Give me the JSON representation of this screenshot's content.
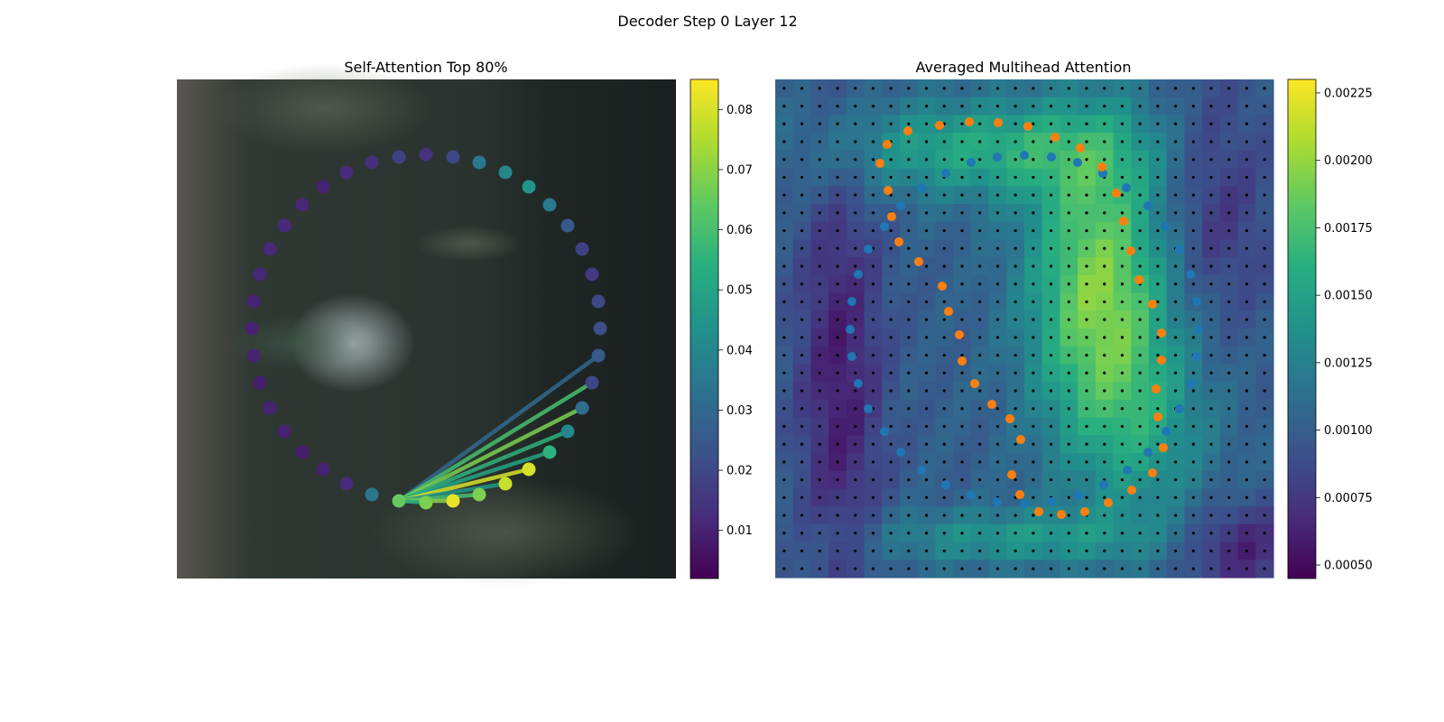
{
  "figure": {
    "suptitle": "Decoder Step 0 Layer 12"
  },
  "chart_data": [
    {
      "type": "scatter",
      "panel": "left",
      "title": "Self-Attention Top 80%",
      "colormap": "viridis",
      "colorbar": {
        "ticks": [
          "0.01",
          "0.02",
          "0.03",
          "0.04",
          "0.05",
          "0.06",
          "0.07",
          "0.08"
        ],
        "range": [
          0.002,
          0.085
        ]
      },
      "points": [
        {
          "x": 472,
          "y": 171,
          "v": 0.014
        },
        {
          "x": 502,
          "y": 174,
          "v": 0.02
        },
        {
          "x": 531,
          "y": 180,
          "v": 0.035
        },
        {
          "x": 560,
          "y": 191,
          "v": 0.04
        },
        {
          "x": 586,
          "y": 207,
          "v": 0.045
        },
        {
          "x": 609,
          "y": 227,
          "v": 0.035
        },
        {
          "x": 629,
          "y": 250,
          "v": 0.025
        },
        {
          "x": 645,
          "y": 276,
          "v": 0.018
        },
        {
          "x": 656,
          "y": 304,
          "v": 0.016
        },
        {
          "x": 663,
          "y": 334,
          "v": 0.02
        },
        {
          "x": 665,
          "y": 364,
          "v": 0.022
        },
        {
          "x": 663,
          "y": 394,
          "v": 0.025
        },
        {
          "x": 656,
          "y": 424,
          "v": 0.02
        },
        {
          "x": 645,
          "y": 452,
          "v": 0.032
        },
        {
          "x": 629,
          "y": 478,
          "v": 0.04
        },
        {
          "x": 609,
          "y": 501,
          "v": 0.055
        },
        {
          "x": 586,
          "y": 520,
          "v": 0.08
        },
        {
          "x": 560,
          "y": 536,
          "v": 0.078
        },
        {
          "x": 531,
          "y": 548,
          "v": 0.068
        },
        {
          "x": 502,
          "y": 555,
          "v": 0.082
        },
        {
          "x": 472,
          "y": 557,
          "v": 0.068
        },
        {
          "x": 442,
          "y": 555,
          "v": 0.065
        },
        {
          "x": 412,
          "y": 548,
          "v": 0.035
        },
        {
          "x": 384,
          "y": 536,
          "v": 0.012
        },
        {
          "x": 358,
          "y": 520,
          "v": 0.01
        },
        {
          "x": 335,
          "y": 501,
          "v": 0.009
        },
        {
          "x": 315,
          "y": 478,
          "v": 0.01
        },
        {
          "x": 299,
          "y": 452,
          "v": 0.01
        },
        {
          "x": 288,
          "y": 424,
          "v": 0.009
        },
        {
          "x": 281,
          "y": 394,
          "v": 0.01
        },
        {
          "x": 279,
          "y": 364,
          "v": 0.01
        },
        {
          "x": 281,
          "y": 334,
          "v": 0.01
        },
        {
          "x": 288,
          "y": 304,
          "v": 0.011
        },
        {
          "x": 299,
          "y": 276,
          "v": 0.012
        },
        {
          "x": 315,
          "y": 250,
          "v": 0.012
        },
        {
          "x": 335,
          "y": 227,
          "v": 0.011
        },
        {
          "x": 358,
          "y": 207,
          "v": 0.01
        },
        {
          "x": 384,
          "y": 191,
          "v": 0.012
        },
        {
          "x": 412,
          "y": 180,
          "v": 0.013
        },
        {
          "x": 442,
          "y": 174,
          "v": 0.018
        }
      ],
      "links": [
        {
          "from": 21,
          "to": 11,
          "v": 0.03
        },
        {
          "from": 21,
          "to": 12,
          "v": 0.06
        },
        {
          "from": 21,
          "to": 13,
          "v": 0.068
        },
        {
          "from": 21,
          "to": 14,
          "v": 0.055
        },
        {
          "from": 21,
          "to": 15,
          "v": 0.05
        },
        {
          "from": 21,
          "to": 16,
          "v": 0.08
        },
        {
          "from": 21,
          "to": 17,
          "v": 0.045
        },
        {
          "from": 21,
          "to": 18,
          "v": 0.06
        },
        {
          "from": 21,
          "to": 19,
          "v": 0.07
        },
        {
          "from": 21,
          "to": 20,
          "v": 0.05
        }
      ]
    },
    {
      "type": "heatmap",
      "panel": "right",
      "title": "Averaged Multihead Attention",
      "colormap": "viridis",
      "colorbar": {
        "ticks": [
          "0.00050",
          "0.00075",
          "0.00100",
          "0.00125",
          "0.00150",
          "0.00175",
          "0.00200",
          "0.00225"
        ],
        "range": [
          0.00045,
          0.0023
        ]
      },
      "grid_cells": 28,
      "blue_points": [
        [
          1076,
          180
        ],
        [
          1105,
          174
        ],
        [
          1135,
          172
        ],
        [
          1165,
          174
        ],
        [
          1194,
          180
        ],
        [
          1222,
          192
        ],
        [
          1248,
          208
        ],
        [
          1272,
          228
        ],
        [
          1291,
          251
        ],
        [
          1307,
          276
        ],
        [
          1319,
          304
        ],
        [
          1326,
          334
        ],
        [
          1328,
          365
        ],
        [
          1326,
          395
        ],
        [
          1320,
          425
        ],
        [
          1307,
          453
        ],
        [
          1292,
          478
        ],
        [
          1272,
          501
        ],
        [
          1249,
          521
        ],
        [
          1223,
          537
        ],
        [
          1195,
          549
        ],
        [
          1165,
          556
        ],
        [
          1135,
          558
        ],
        [
          1105,
          556
        ],
        [
          1076,
          549
        ],
        [
          1048,
          537
        ],
        [
          1021,
          521
        ],
        [
          998,
          501
        ],
        [
          980,
          478
        ],
        [
          962,
          453
        ],
        [
          951,
          425
        ],
        [
          944,
          395
        ],
        [
          942,
          365
        ],
        [
          944,
          334
        ],
        [
          951,
          304
        ],
        [
          962,
          276
        ],
        [
          980,
          251
        ],
        [
          998,
          228
        ],
        [
          1021,
          208
        ],
        [
          1048,
          192
        ]
      ],
      "orange_points": [
        [
          1041,
          139
        ],
        [
          1074,
          135
        ],
        [
          1106,
          136
        ],
        [
          1139,
          140
        ],
        [
          1169,
          152
        ],
        [
          1197,
          164
        ],
        [
          1221,
          185
        ],
        [
          1237,
          214
        ],
        [
          1245,
          245
        ],
        [
          1253,
          278
        ],
        [
          1262,
          310
        ],
        [
          1277,
          337
        ],
        [
          1287,
          369
        ],
        [
          1287,
          399
        ],
        [
          1281,
          431
        ],
        [
          1283,
          462
        ],
        [
          1289,
          496
        ],
        [
          1277,
          524
        ],
        [
          1254,
          543
        ],
        [
          1228,
          557
        ],
        [
          1202,
          567
        ],
        [
          1176,
          570
        ],
        [
          1151,
          567
        ],
        [
          1130,
          548
        ],
        [
          1121,
          526
        ],
        [
          1131,
          487
        ],
        [
          1119,
          464
        ],
        [
          1099,
          448
        ],
        [
          1080,
          425
        ],
        [
          1066,
          400
        ],
        [
          1063,
          371
        ],
        [
          1051,
          345
        ],
        [
          1044,
          317
        ],
        [
          1018,
          290
        ],
        [
          996,
          268
        ],
        [
          988,
          240
        ],
        [
          984,
          211
        ],
        [
          975,
          181
        ],
        [
          983,
          160
        ],
        [
          1006,
          145
        ]
      ]
    }
  ]
}
